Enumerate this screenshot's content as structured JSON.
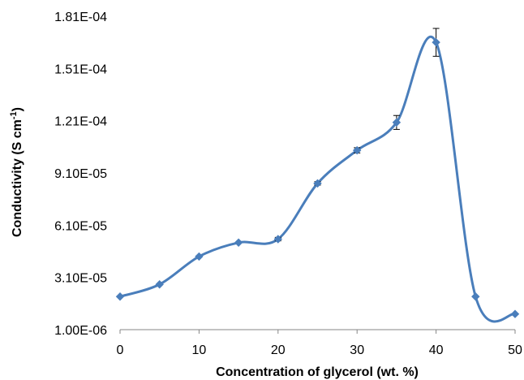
{
  "chart_data": {
    "type": "line",
    "xlabel": "Concentration of glycerol (wt. %)",
    "ylabel": "Conductivity (S cm",
    "ylabel_sup": "-1",
    "ylabel_close": ")",
    "xlim": [
      0,
      50
    ],
    "ylim": [
      1e-06,
      0.000181
    ],
    "x_ticks": [
      0,
      10,
      20,
      30,
      40,
      50
    ],
    "x_tick_labels": [
      "0",
      "10",
      "20",
      "30",
      "40",
      "50"
    ],
    "y_ticks": [
      1e-06,
      3.1e-05,
      6.1e-05,
      9.1e-05,
      0.000121,
      0.000151,
      0.000181
    ],
    "y_tick_labels": [
      "1.00E-06",
      "3.10E-05",
      "6.10E-05",
      "9.10E-05",
      "1.21E-04",
      "1.51E-04",
      "1.81E-04"
    ],
    "grid": false,
    "smooth": true,
    "color": "#4a7ebb",
    "series": [
      {
        "x": [
          0,
          5,
          10,
          15,
          20,
          25,
          30,
          35,
          40,
          45,
          50
        ],
        "y": [
          2e-05,
          2.7e-05,
          4.3e-05,
          5.1e-05,
          5.3e-05,
          8.5e-05,
          0.000104,
          0.00012,
          0.000166,
          2e-05,
          1e-05
        ],
        "err": [
          0,
          0,
          0,
          0,
          1e-06,
          1e-06,
          1.5e-06,
          4e-06,
          8e-06,
          0,
          0
        ]
      }
    ]
  }
}
